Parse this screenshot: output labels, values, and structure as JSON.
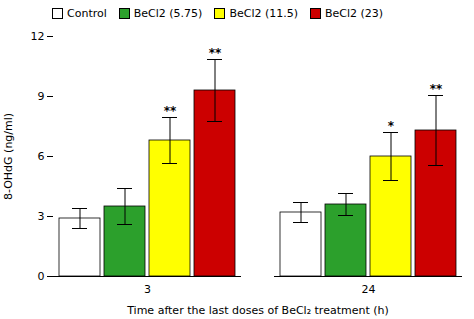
{
  "chart_data": {
    "type": "bar",
    "xlabel": "Time after the last doses of BeCl₂ treatment (h)",
    "ylabel": "8-OHdG (ng/ml)",
    "categories": [
      "3",
      "24"
    ],
    "series": [
      {
        "name": "Control",
        "color": "#ffffff",
        "values": [
          2.9,
          3.2
        ],
        "errors": [
          0.5,
          0.5
        ],
        "significance": [
          null,
          null
        ]
      },
      {
        "name": "BeCl2 (5.75)",
        "color": "#2ca02c",
        "values": [
          3.5,
          3.6
        ],
        "errors": [
          0.9,
          0.55
        ],
        "significance": [
          null,
          null
        ]
      },
      {
        "name": "BeCl2 (11.5)",
        "color": "#ffff00",
        "values": [
          6.8,
          6.0
        ],
        "errors": [
          1.15,
          1.2
        ],
        "significance": [
          "**",
          "*"
        ]
      },
      {
        "name": "BeCl2 (23)",
        "color": "#cc0000",
        "values": [
          9.3,
          7.3
        ],
        "errors": [
          1.55,
          1.75
        ],
        "significance": [
          "**",
          "**"
        ]
      }
    ],
    "ylim": [
      0,
      12
    ],
    "yticks": [
      0,
      3,
      6,
      9,
      12
    ],
    "legend": "upper left",
    "grid": false
  }
}
